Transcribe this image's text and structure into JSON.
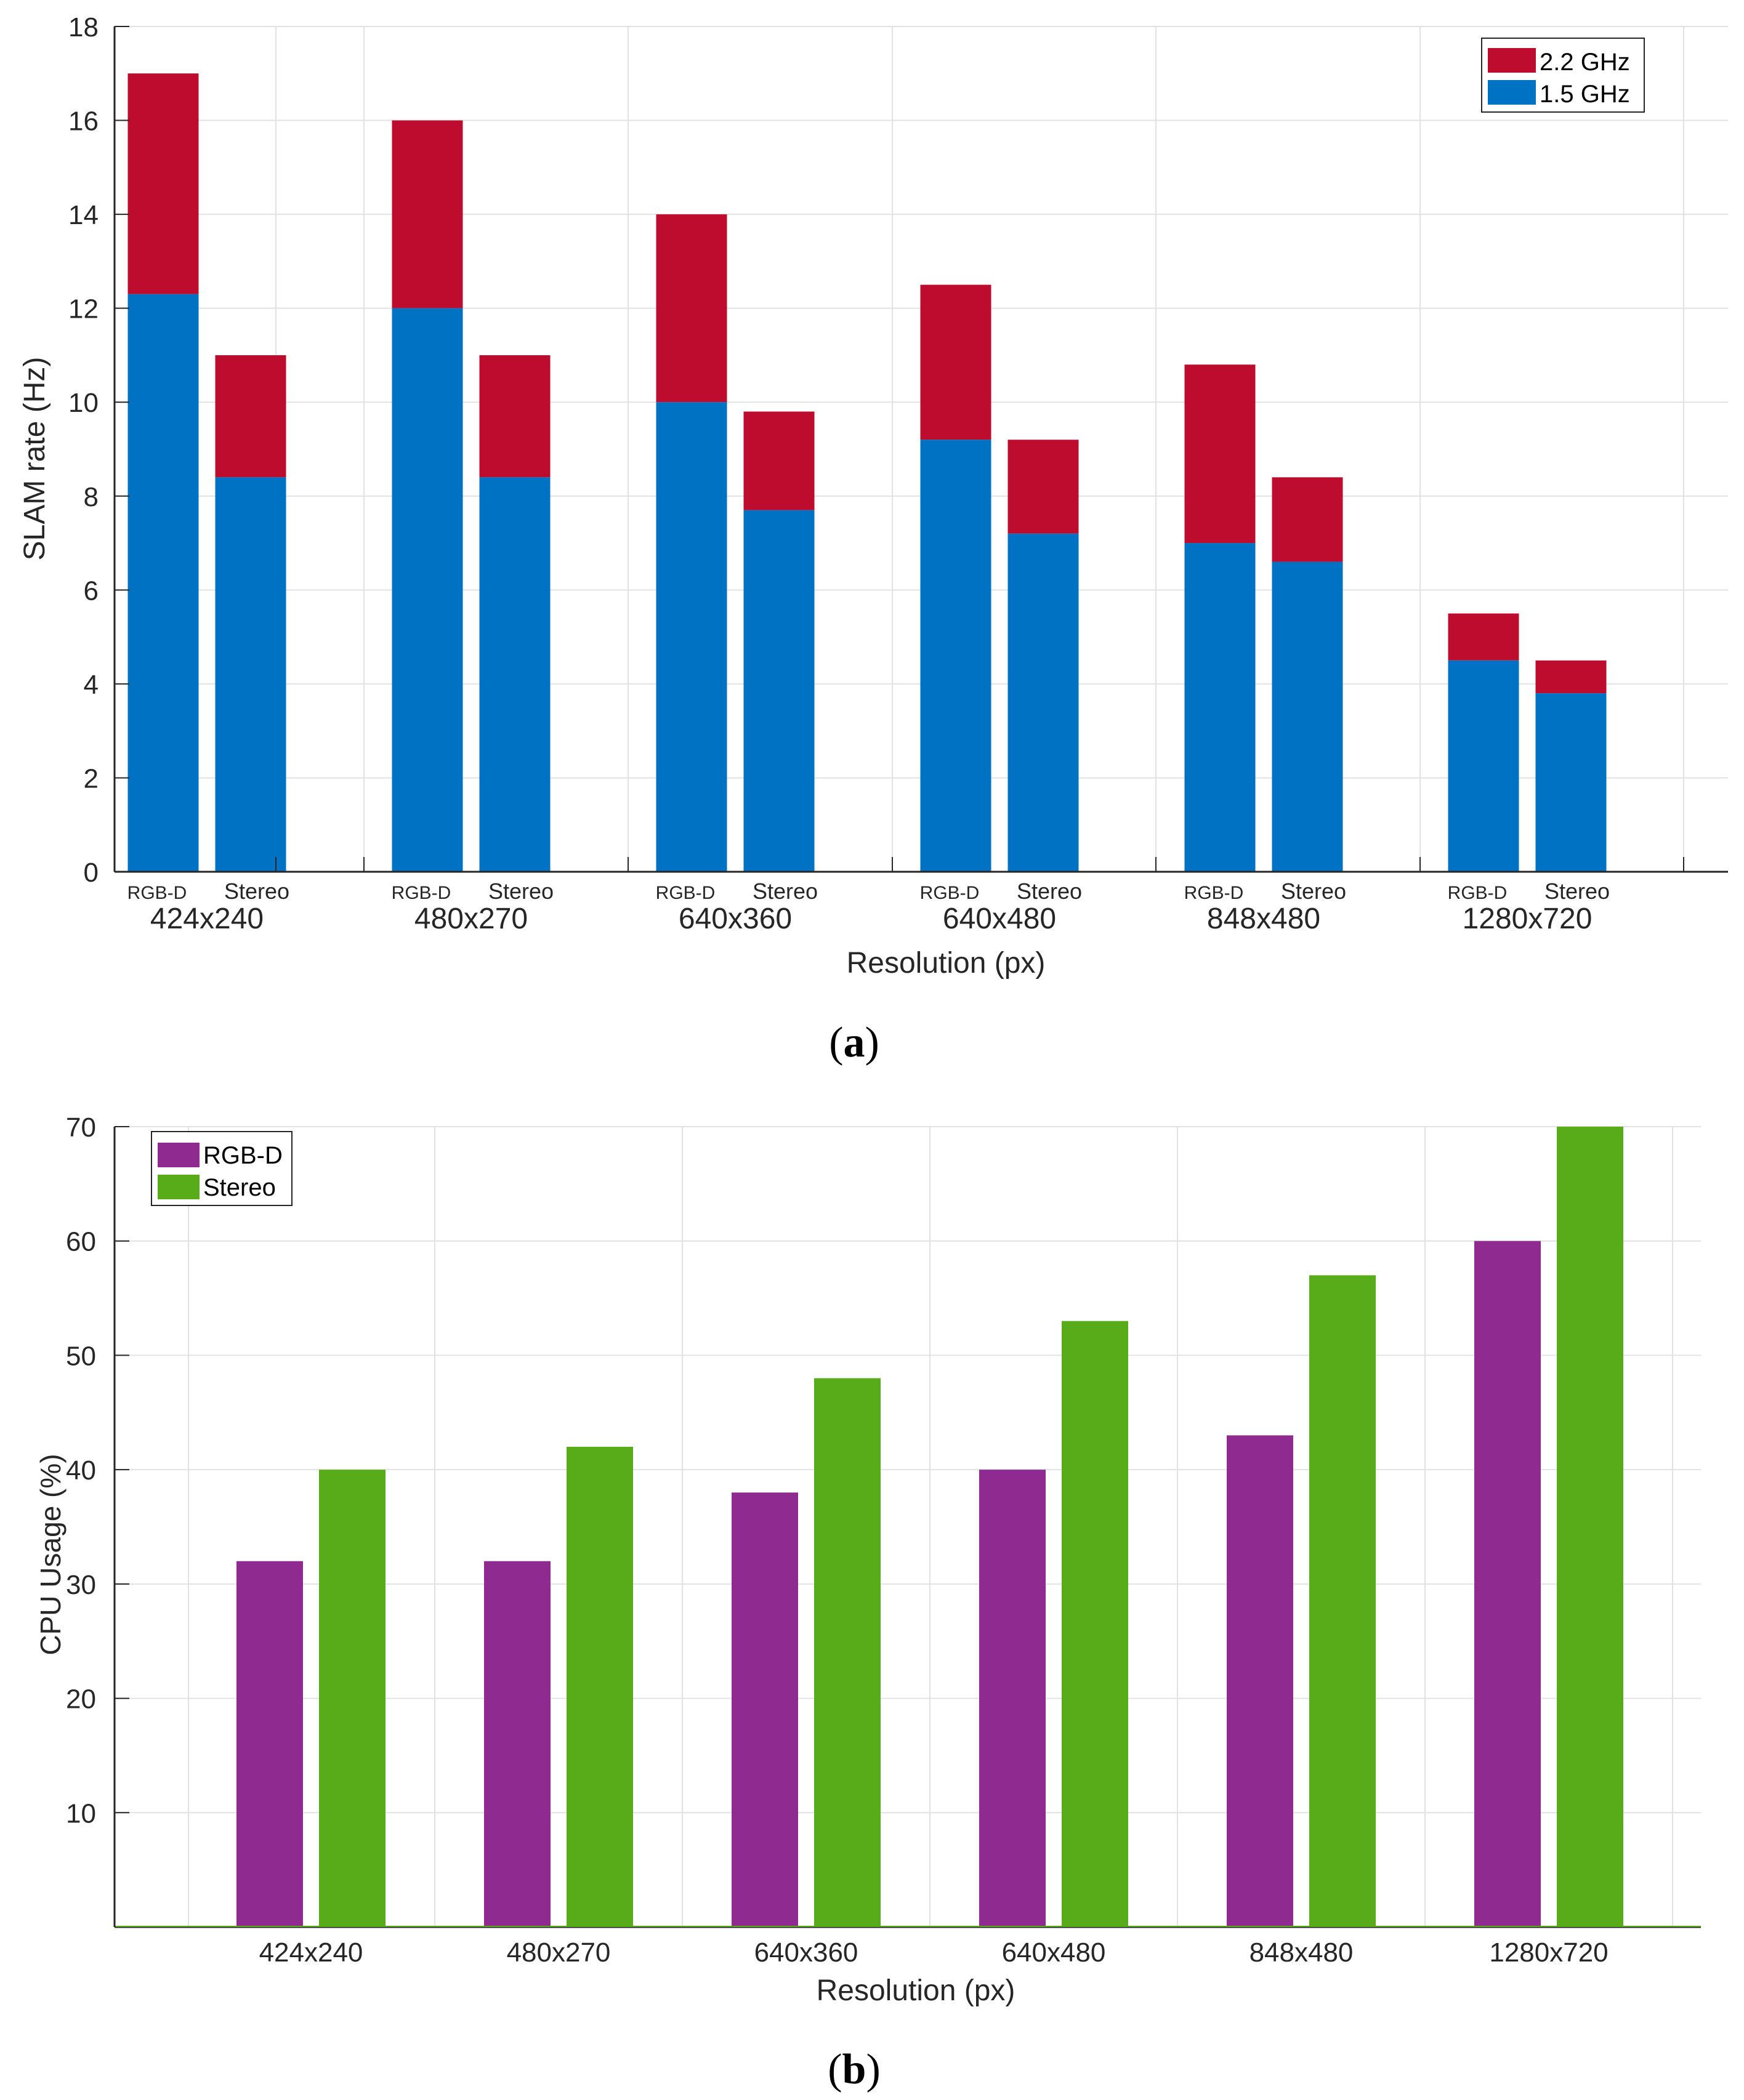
{
  "chart_data": [
    {
      "type": "bar",
      "stacked": true,
      "caption_letter": "a",
      "xlabel": "Resolution (px)",
      "ylabel": "SLAM rate (Hz)",
      "ylim": [
        0,
        18
      ],
      "yticks": [
        0,
        2,
        4,
        6,
        8,
        10,
        12,
        14,
        16,
        18
      ],
      "grid": true,
      "legend_position": "top-right",
      "groups": [
        "424x240",
        "480x270",
        "640x360",
        "640x480",
        "848x480",
        "1280x720"
      ],
      "bar_labels": [
        "RGB-D",
        "Stereo"
      ],
      "series": [
        {
          "name": "2.2 GHz",
          "color": "#be0c2e",
          "totals": [
            [
              17.0,
              11.0
            ],
            [
              16.0,
              11.0
            ],
            [
              14.0,
              9.8
            ],
            [
              12.5,
              9.2
            ],
            [
              10.8,
              8.4
            ],
            [
              5.5,
              4.5
            ]
          ]
        },
        {
          "name": "1.5 GHz",
          "color": "#0072c3",
          "values": [
            [
              12.3,
              8.4
            ],
            [
              12.0,
              8.4
            ],
            [
              10.0,
              7.7
            ],
            [
              9.2,
              7.2
            ],
            [
              7.0,
              6.6
            ],
            [
              4.5,
              3.8
            ]
          ]
        }
      ]
    },
    {
      "type": "bar",
      "caption_letter": "b",
      "xlabel": "Resolution (px)",
      "ylabel": "CPU Usage (%)",
      "ylim": [
        0,
        70
      ],
      "yticks": [
        10,
        20,
        30,
        40,
        50,
        60,
        70
      ],
      "grid": true,
      "legend_position": "top-left",
      "categories": [
        "424x240",
        "480x270",
        "640x360",
        "640x480",
        "848x480",
        "1280x720"
      ],
      "series": [
        {
          "name": "RGB-D",
          "color": "#8f2a90",
          "values": [
            32,
            32,
            38,
            40,
            43,
            60
          ]
        },
        {
          "name": "Stereo",
          "color": "#58ab19",
          "values": [
            40,
            42,
            48,
            53,
            57,
            70
          ]
        }
      ]
    }
  ]
}
